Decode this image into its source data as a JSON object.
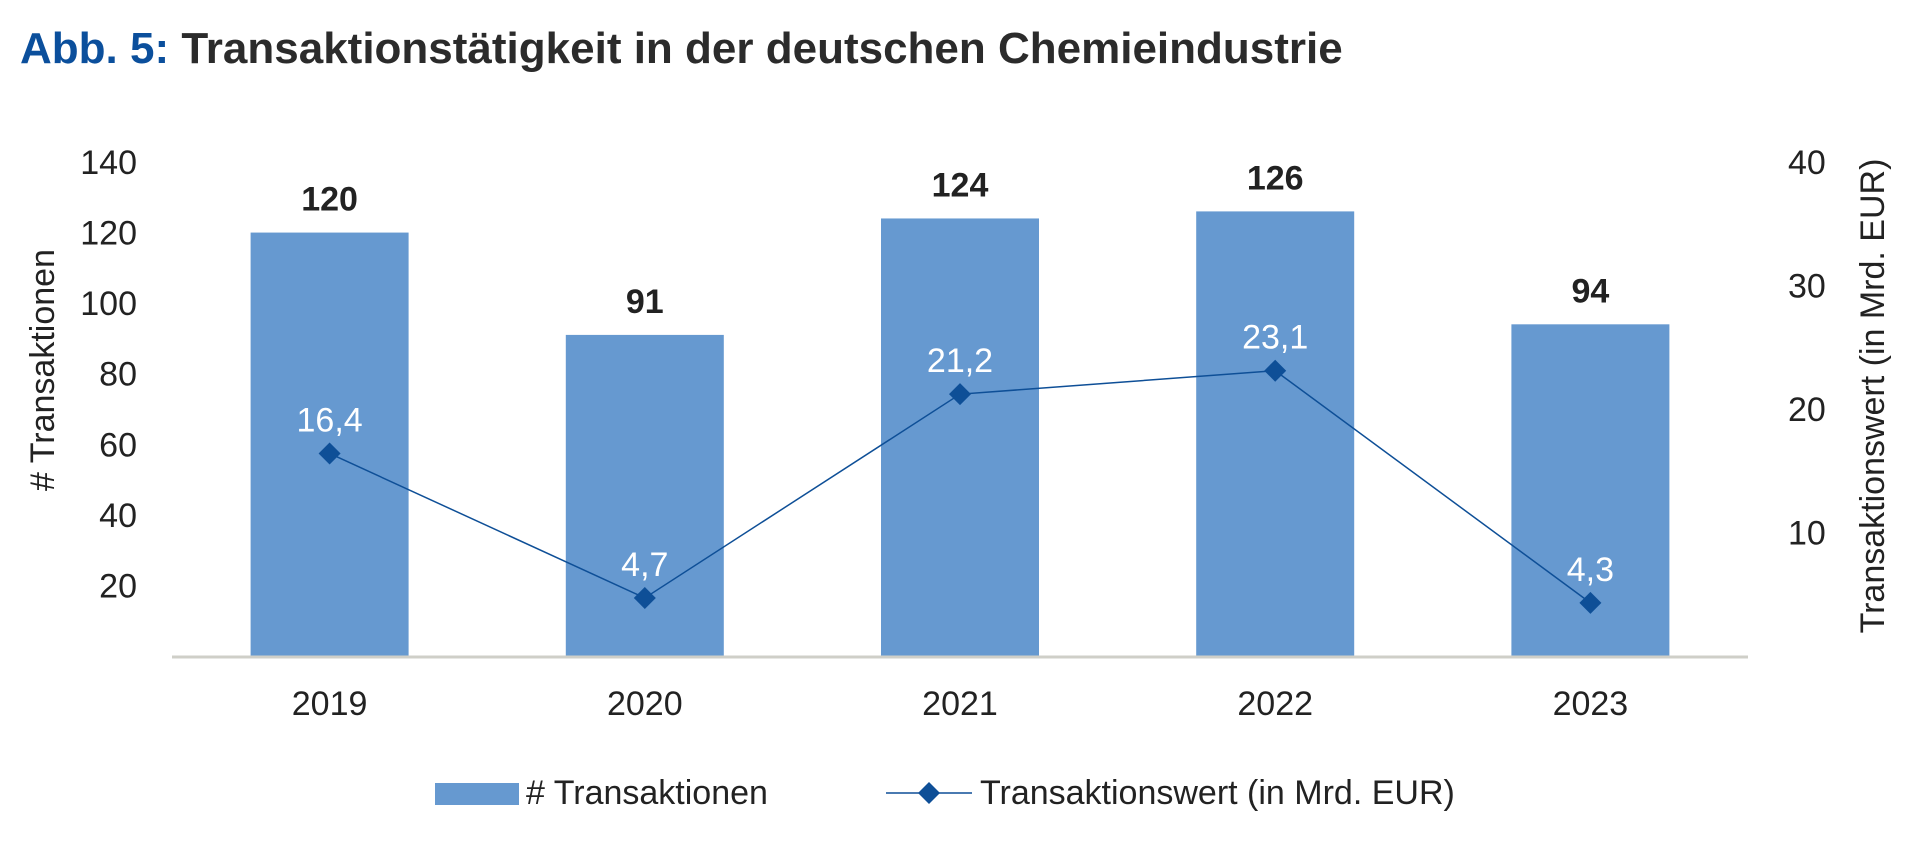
{
  "title_prefix": "Abb. 5:",
  "title": "Transaktionstätigkeit in der deutschen Chemieindustrie",
  "chart_data": {
    "type": "bar",
    "categories": [
      "2019",
      "2020",
      "2021",
      "2022",
      "2023"
    ],
    "series": [
      {
        "name": "# Transaktionen",
        "type": "bar",
        "axis": "left",
        "values": [
          120,
          91,
          124,
          126,
          94
        ],
        "labels": [
          "120",
          "91",
          "124",
          "126",
          "94"
        ],
        "color": "#6699d0"
      },
      {
        "name": "Transaktionswert (in Mrd. EUR)",
        "type": "line",
        "axis": "right",
        "values": [
          16.4,
          4.7,
          21.2,
          23.1,
          4.3
        ],
        "labels": [
          "16,4",
          "4,7",
          "21,2",
          "23,1",
          "4,3"
        ],
        "color": "#0e4f97"
      }
    ],
    "ylabel": "# Transaktionen",
    "y2label": "Transaktionswert (in Mrd. EUR)",
    "ylim": [
      0,
      140
    ],
    "y2lim": [
      0,
      40
    ],
    "yticks": [
      20,
      40,
      60,
      80,
      100,
      120,
      140
    ],
    "y2ticks": [
      10,
      20,
      30,
      40
    ],
    "grid": false,
    "legend": "bottom"
  }
}
